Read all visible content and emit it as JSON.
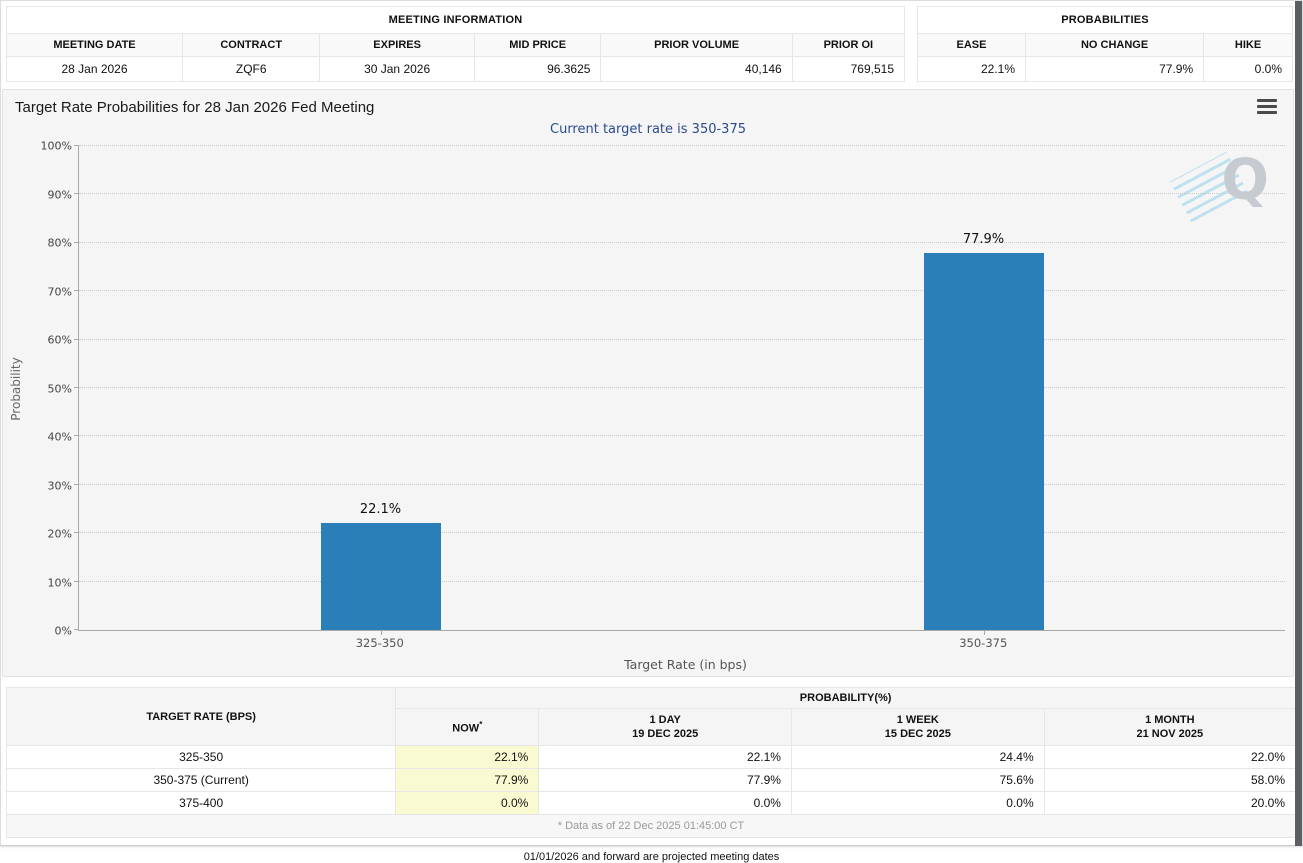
{
  "meeting_info": {
    "title": "MEETING INFORMATION",
    "columns": [
      "MEETING DATE",
      "CONTRACT",
      "EXPIRES",
      "MID PRICE",
      "PRIOR VOLUME",
      "PRIOR OI"
    ],
    "row": {
      "meeting_date": "28 Jan 2026",
      "contract": "ZQF6",
      "expires": "30 Jan 2026",
      "mid_price": "96.3625",
      "prior_volume": "40,146",
      "prior_oi": "769,515"
    }
  },
  "probabilities": {
    "title": "PROBABILITIES",
    "columns": [
      "EASE",
      "NO CHANGE",
      "HIKE"
    ],
    "row": {
      "ease": "22.1%",
      "no_change": "77.9%",
      "hike": "0.0%"
    }
  },
  "chart_data": {
    "type": "bar",
    "title": "Target Rate Probabilities for 28 Jan 2026 Fed Meeting",
    "subtitle": "Current target rate is 350-375",
    "categories": [
      "325-350",
      "350-375"
    ],
    "values": [
      22.1,
      77.9
    ],
    "value_labels": [
      "22.1%",
      "77.9%"
    ],
    "xlabel": "Target Rate (in bps)",
    "ylabel": "Probability",
    "ylim": [
      0,
      100
    ],
    "y_ticks": [
      0,
      10,
      20,
      30,
      40,
      50,
      60,
      70,
      80,
      90,
      100
    ],
    "grid": "horizontal-dotted",
    "legend": "none",
    "bar_color": "#2a7fb8"
  },
  "history_table": {
    "col_target_rate": "TARGET RATE (BPS)",
    "col_probability": "PROBABILITY(%)",
    "subcolumns": [
      {
        "line1": "NOW",
        "asterisk": "*",
        "line2": ""
      },
      {
        "line1": "1 DAY",
        "line2": "19 DEC 2025"
      },
      {
        "line1": "1 WEEK",
        "line2": "15 DEC 2025"
      },
      {
        "line1": "1 MONTH",
        "line2": "21 NOV 2025"
      }
    ],
    "rows": [
      {
        "rate": "325-350",
        "now": "22.1%",
        "d1": "22.1%",
        "w1": "24.4%",
        "m1": "22.0%"
      },
      {
        "rate": "350-375 (Current)",
        "now": "77.9%",
        "d1": "77.9%",
        "w1": "75.6%",
        "m1": "58.0%"
      },
      {
        "rate": "375-400",
        "now": "0.0%",
        "d1": "0.0%",
        "w1": "0.0%",
        "m1": "20.0%"
      }
    ],
    "footnote": "* Data as of 22 Dec 2025 01:45:00 CT"
  },
  "icons": {
    "menu": "hamburger-menu-icon",
    "watermark_letter": "Q"
  },
  "colors": {
    "bar": "#2a7fb8",
    "subtitle": "#2b4a8f",
    "now_column_highlight": "#fafad2",
    "panel_background": "#f5f5f5",
    "scroll_strip": "#5b5f63"
  },
  "page": {
    "footer_note": "01/01/2026 and forward are projected meeting dates"
  }
}
